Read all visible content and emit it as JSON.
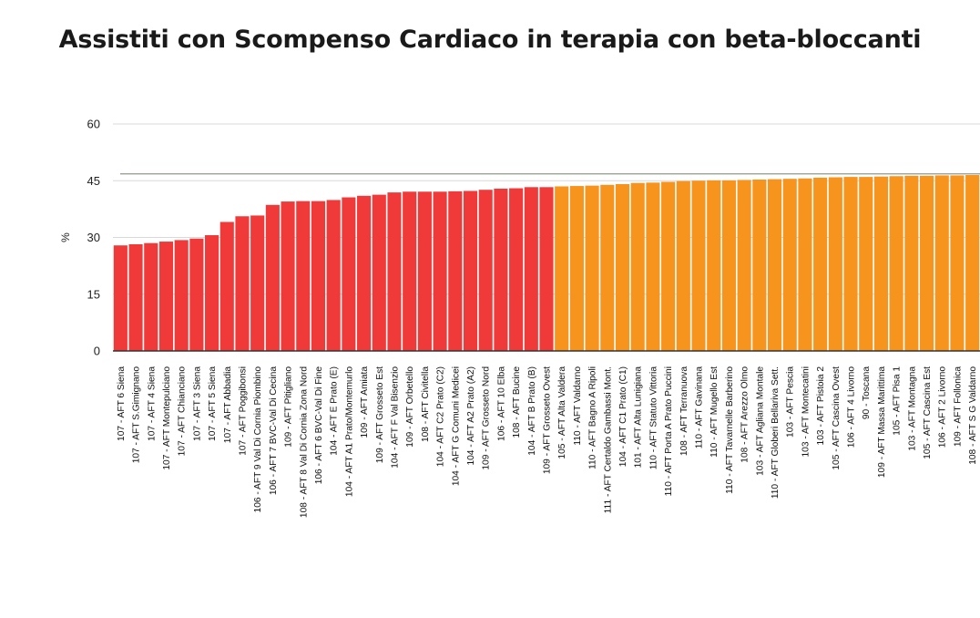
{
  "chart_data": {
    "type": "bar",
    "title": "Assistiti con Scompenso Cardiaco in terapia con beta-bloccanti",
    "xlabel": "",
    "ylabel": "%",
    "ylim": [
      0,
      60
    ],
    "yticks": [
      0,
      15,
      30,
      45,
      60
    ],
    "grid": true,
    "reference_line": 46.8,
    "colors": {
      "below_reference": "#f03a3a",
      "above_reference": "#f7941d",
      "grid": "#d9d9d9",
      "reference_line": "#8f9a8f",
      "axis": "#333333"
    },
    "categories": [
      "107 - AFT 6 Siena",
      "107 - AFT S.Gimignano",
      "107 - AFT 4 Siena",
      "107 - AFT Montepulciano",
      "107 - AFT Chianciano",
      "107 - AFT 3 Siena",
      "107 - AFT 5 Siena",
      "107 - AFT Abbadia",
      "107 - AFT Poggibonsi",
      "106 - AFT 9 Val Di Cornia Piombino",
      "106 - AFT 7 BVC-Val Di Cecina",
      "109 - AFT Pitigliano",
      "108 - AFT 8 Val Di Cornia Zona Nord",
      "106 - AFT 6 BVC-Val Di Fine",
      "104 - AFT E Prato (E)",
      "104 - AFT A1 Prato/Montemurlo",
      "109 - AFT Amiata",
      "109 - AFT Grosseto Est",
      "104 - AFT F Val Bisenzio",
      "109 - AFT Orbetello",
      "108 - AFT Civitella",
      "104 - AFT C2 Prato (C2)",
      "104 - AFT G Comuni Medicei",
      "104 - AFT A2 Prato (A2)",
      "109 - AFT Grosseto Nord",
      "106 - AFT 10 Elba",
      "108 - AFT Bucine",
      "104 - AFT B Prato (B)",
      "109 - AFT Grosseto Ovest",
      "105 - AFT Alta Valdera",
      "110 - AFT Valdarno",
      "110 - AFT Bagno A Ripoli",
      "111 - AFT Certaldo Gambassi Mont.",
      "104 - AFT C1 Prato (C1)",
      "101 - AFT Alta Lunigiana",
      "110 - AFT Statuto Vittoria",
      "110 - AFT Porta A Prato Puccini",
      "108 - AFT Terranuova",
      "110 - AFT Gavinana",
      "110 - AFT Mugello Est",
      "110 - AFT Tavarnelle Barberino",
      "108 - AFT Arezzo Olmo",
      "103 - AFT Agliana Montale",
      "110 - AFT Globeri Bellariva Sett.",
      "103 - AFT Pescia",
      "103 - AFT Montecatini",
      "103 - AFT Pistoia 2",
      "105 - AFT Cascina Ovest",
      "106 - AFT 4 Livorno",
      "90 - Toscana",
      "109 - AFT Massa Marittima",
      "105 - AFT Pisa 1",
      "103 - AFT Montagna",
      "105 - AFT Cascina Est",
      "106 - AFT 2 Livorno",
      "109 - AFT Follonica",
      "108 - AFT S G Valdarno"
    ],
    "values": [
      27.9,
      28.2,
      28.5,
      28.9,
      29.3,
      29.7,
      30.6,
      34.1,
      35.6,
      35.8,
      38.6,
      39.5,
      39.6,
      39.6,
      39.9,
      40.6,
      41.0,
      41.3,
      41.9,
      42.1,
      42.1,
      42.1,
      42.2,
      42.3,
      42.6,
      42.9,
      43.0,
      43.3,
      43.3,
      43.5,
      43.6,
      43.7,
      43.9,
      44.1,
      44.4,
      44.5,
      44.7,
      44.9,
      45.0,
      45.1,
      45.1,
      45.2,
      45.3,
      45.4,
      45.5,
      45.6,
      45.8,
      45.9,
      46.0,
      46.0,
      46.1,
      46.2,
      46.3,
      46.3,
      46.4,
      46.4,
      46.5
    ],
    "series_colors": [
      "red",
      "red",
      "red",
      "red",
      "red",
      "red",
      "red",
      "red",
      "red",
      "red",
      "red",
      "red",
      "red",
      "red",
      "red",
      "red",
      "red",
      "red",
      "red",
      "red",
      "red",
      "red",
      "red",
      "red",
      "red",
      "red",
      "red",
      "red",
      "red",
      "orange",
      "orange",
      "orange",
      "orange",
      "orange",
      "orange",
      "orange",
      "orange",
      "orange",
      "orange",
      "orange",
      "orange",
      "orange",
      "orange",
      "orange",
      "orange",
      "orange",
      "orange",
      "orange",
      "orange",
      "orange",
      "orange",
      "orange",
      "orange",
      "orange",
      "orange",
      "orange",
      "orange"
    ]
  }
}
